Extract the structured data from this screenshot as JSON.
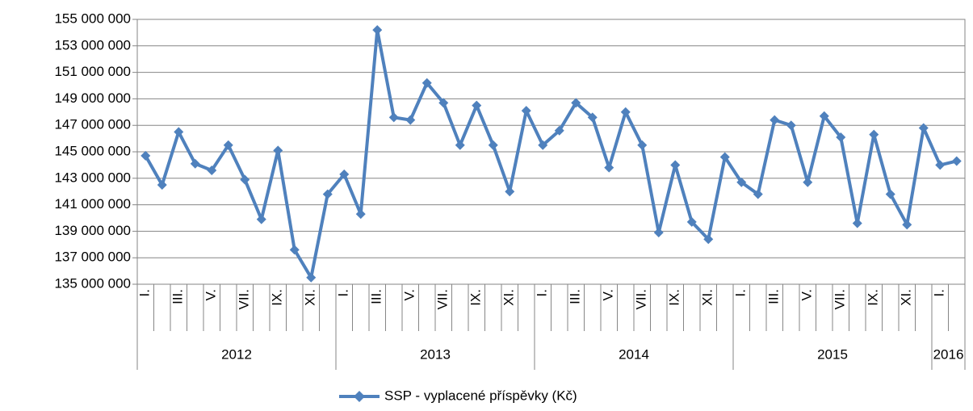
{
  "chart_data": {
    "type": "line",
    "categories": [
      "I.",
      null,
      "III.",
      null,
      "V.",
      null,
      "VII.",
      null,
      "IX.",
      null,
      "XI.",
      null,
      "I.",
      null,
      "III.",
      null,
      "V.",
      null,
      "VII.",
      null,
      "IX.",
      null,
      "XI.",
      null,
      "I.",
      null,
      "III.",
      null,
      "V.",
      null,
      "VII.",
      null,
      "IX.",
      null,
      "XI.",
      null,
      "I.",
      null,
      "III.",
      null,
      "V.",
      null,
      "VII.",
      null,
      "IX.",
      null,
      "XI.",
      null,
      "I.",
      null
    ],
    "groups": [
      {
        "label": "2012",
        "count": 12
      },
      {
        "label": "2013",
        "count": 12
      },
      {
        "label": "2014",
        "count": 12
      },
      {
        "label": "2015",
        "count": 12
      },
      {
        "label": "2016",
        "count": 2
      }
    ],
    "series": [
      {
        "name": "SSP - vyplacené příspěvky (Kč)",
        "color": "#4f81bd",
        "values": [
          144700000,
          142500000,
          146500000,
          144100000,
          143600000,
          145500000,
          142900000,
          139900000,
          145100000,
          137600000,
          135500000,
          141800000,
          143300000,
          140300000,
          154200000,
          147600000,
          147400000,
          150200000,
          148700000,
          145500000,
          148500000,
          145500000,
          142000000,
          148100000,
          145500000,
          146600000,
          148700000,
          147600000,
          143800000,
          148000000,
          145500000,
          138900000,
          144000000,
          139700000,
          138400000,
          144600000,
          142700000,
          141800000,
          147400000,
          147000000,
          142700000,
          147700000,
          146100000,
          139600000,
          146300000,
          141800000,
          139500000,
          146800000,
          144000000,
          144300000
        ]
      }
    ],
    "ylim": [
      135000000,
      155000000
    ],
    "yticks": [
      {
        "value": 135000000,
        "label": "135 000 000"
      },
      {
        "value": 137000000,
        "label": "137 000 000"
      },
      {
        "value": 139000000,
        "label": "139 000 000"
      },
      {
        "value": 141000000,
        "label": "141 000 000"
      },
      {
        "value": 143000000,
        "label": "143 000 000"
      },
      {
        "value": 145000000,
        "label": "145 000 000"
      },
      {
        "value": 147000000,
        "label": "147 000 000"
      },
      {
        "value": 149000000,
        "label": "149 000 000"
      },
      {
        "value": 151000000,
        "label": "151 000 000"
      },
      {
        "value": 153000000,
        "label": "153 000 000"
      },
      {
        "value": 155000000,
        "label": "155 000 000"
      }
    ],
    "grid": true,
    "legend": "bottom"
  }
}
